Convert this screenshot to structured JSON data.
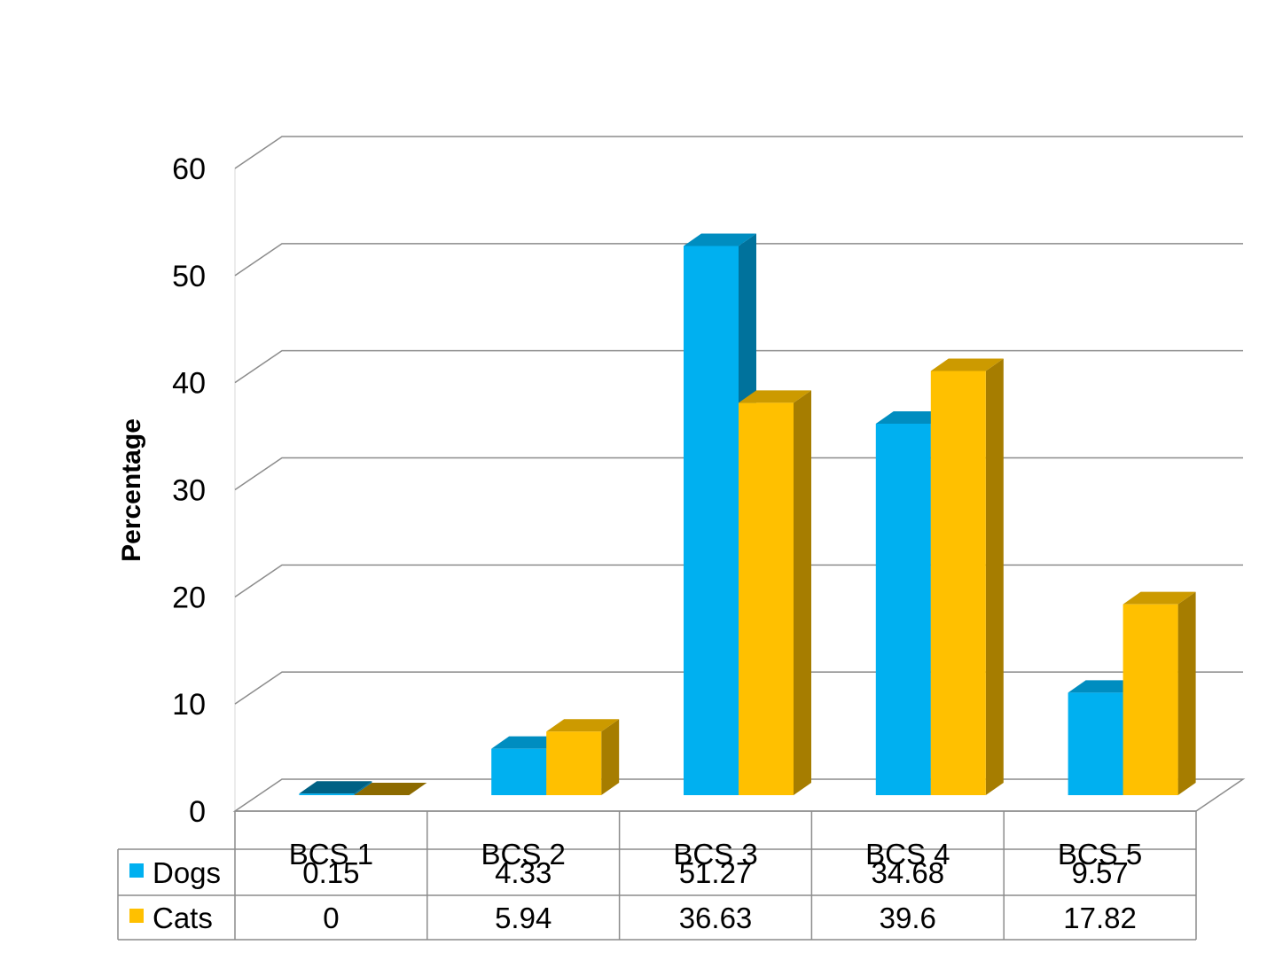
{
  "chart_data": {
    "type": "bar",
    "categories": [
      "BCS 1",
      "BCS 2",
      "BCS 3",
      "BCS 4",
      "BCS 5"
    ],
    "series": [
      {
        "name": "Dogs",
        "values": [
          0.15,
          4.33,
          51.27,
          34.68,
          9.57
        ],
        "labels": [
          "0.15",
          "4.33",
          "51.27",
          "34.68",
          "9.57"
        ],
        "color": "#00b0f0"
      },
      {
        "name": "Cats",
        "values": [
          0,
          5.94,
          36.63,
          39.6,
          17.82
        ],
        "labels": [
          "0",
          "5.94",
          "36.63",
          "39.6",
          "17.82"
        ],
        "color": "#ffc000"
      }
    ],
    "ylabel": "Percentage",
    "ylim": [
      0,
      60
    ],
    "yticks": [
      0,
      10,
      20,
      30,
      40,
      50,
      60
    ],
    "grid": true,
    "style": "3d-clustered-column",
    "data_table": true
  }
}
